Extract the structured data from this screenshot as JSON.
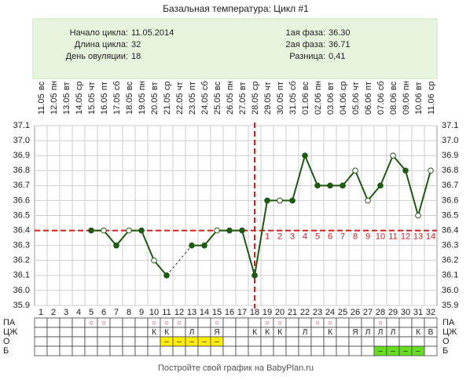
{
  "chart_data": {
    "type": "line",
    "title": "Базальная температура: Цикл #1",
    "info": {
      "left": [
        {
          "label": "Начало цикла:",
          "value": "11.05.2014"
        },
        {
          "label": "Длина цикла:",
          "value": "32"
        },
        {
          "label": "День овуляции:",
          "value": "18"
        }
      ],
      "right": [
        {
          "label": "1ая фаза:",
          "value": "36.30"
        },
        {
          "label": "2ая фаза:",
          "value": "36.71"
        },
        {
          "label": "Разница:",
          "value": "0,41"
        }
      ]
    },
    "days": [
      1,
      2,
      3,
      4,
      5,
      6,
      7,
      8,
      9,
      10,
      11,
      12,
      13,
      14,
      15,
      16,
      17,
      18,
      19,
      20,
      21,
      22,
      23,
      24,
      25,
      26,
      27,
      28,
      29,
      30,
      31,
      32
    ],
    "weekdays": [
      "вс",
      "пн",
      "вт",
      "ср",
      "чт",
      "пт",
      "сб",
      "вс",
      "пн",
      "вт",
      "ср",
      "чт",
      "пт",
      "сб",
      "вс",
      "пн",
      "вт",
      "ср",
      "чт",
      "пт",
      "сб",
      "вс",
      "пн",
      "вт",
      "ср",
      "чт",
      "пт",
      "сб",
      "вс",
      "пн",
      "вт",
      "ср"
    ],
    "dates": [
      "11.05",
      "12.05",
      "13.05",
      "14.05",
      "15.05",
      "16.05",
      "17.05",
      "18.05",
      "19.05",
      "20.05",
      "21.05",
      "22.05",
      "23.05",
      "24.05",
      "25.05",
      "26.05",
      "27.05",
      "28.05",
      "29.05",
      "30.05",
      "31.05",
      "01.06",
      "02.06",
      "03.06",
      "04.06",
      "05.06",
      "06.06",
      "07.06",
      "08.06",
      "09.06",
      "10.06",
      "11.06"
    ],
    "series": [
      {
        "color": "#1e5a12",
        "values": [
          null,
          null,
          null,
          null,
          36.4,
          36.4,
          36.3,
          36.4,
          36.4,
          36.2,
          36.1,
          null,
          36.3,
          36.3,
          36.4,
          36.4,
          36.4,
          36.1,
          36.6,
          36.6,
          36.6,
          36.9,
          36.7,
          36.7,
          36.7,
          36.8,
          36.6,
          36.7,
          36.9,
          36.8,
          36.5,
          36.8
        ],
        "point_style": [
          null,
          null,
          null,
          null,
          "filled",
          "open",
          "filled",
          "open",
          "filled",
          "open",
          "filled",
          null,
          "filled",
          "filled",
          "open",
          "filled",
          "filled",
          "filled",
          "filled",
          "open",
          "filled",
          "filled",
          "filled",
          "filled",
          "filled",
          "open",
          "open",
          "filled",
          "open",
          "filled",
          "open",
          "open"
        ]
      }
    ],
    "ylim": [
      35.9,
      37.1
    ],
    "yticks": [
      {
        "value": 37.1,
        "label": "37.1"
      },
      {
        "value": 37.0,
        "label": "37.0"
      },
      36.9,
      36.8,
      36.7,
      36.6,
      36.5,
      36.4,
      36.3,
      36.2,
      36.1,
      {
        "value": 36.0,
        "label": "36.0"
      },
      35.9
    ],
    "grid": true,
    "coverline": 36.4,
    "ovulation_day": 18,
    "marker_color": "#cc2222",
    "luteal_days": [
      1,
      2,
      3,
      4,
      5,
      6,
      7,
      8,
      9,
      10,
      11,
      12,
      13,
      14
    ],
    "table_rows": [
      {
        "name": "ПА",
        "cells": [
          null,
          null,
          null,
          null,
          "○",
          "○",
          null,
          null,
          null,
          "○",
          "○",
          "○",
          null,
          null,
          "○",
          null,
          null,
          null,
          "○",
          "○",
          null,
          null,
          "○",
          "○",
          null,
          null,
          null,
          "○",
          null,
          null,
          null,
          null
        ]
      },
      {
        "name": "ЦЖ",
        "cells": [
          null,
          null,
          null,
          null,
          null,
          null,
          null,
          null,
          null,
          "К",
          "К",
          null,
          "Л",
          null,
          "Я",
          null,
          null,
          "К",
          "К",
          "К",
          null,
          "Л",
          null,
          "К",
          null,
          "Я",
          "Л",
          "Л",
          "Л",
          null,
          "К",
          "В"
        ]
      },
      {
        "name": "О",
        "color": "#ffee00",
        "cells": [
          null,
          null,
          null,
          null,
          null,
          null,
          null,
          null,
          null,
          null,
          "–",
          "–",
          "–",
          "–",
          "–",
          null,
          null,
          null,
          null,
          null,
          null,
          null,
          null,
          null,
          null,
          null,
          null,
          null,
          null,
          null,
          null,
          null
        ]
      },
      {
        "name": "Б",
        "color": "#66dd22",
        "cells": [
          null,
          null,
          null,
          null,
          null,
          null,
          null,
          null,
          null,
          null,
          null,
          null,
          null,
          null,
          null,
          null,
          null,
          null,
          null,
          null,
          null,
          null,
          null,
          null,
          null,
          null,
          null,
          "–",
          "–",
          "–",
          "–",
          null
        ]
      }
    ],
    "footer": "Постройте свой график на BabyPlan.ru"
  }
}
